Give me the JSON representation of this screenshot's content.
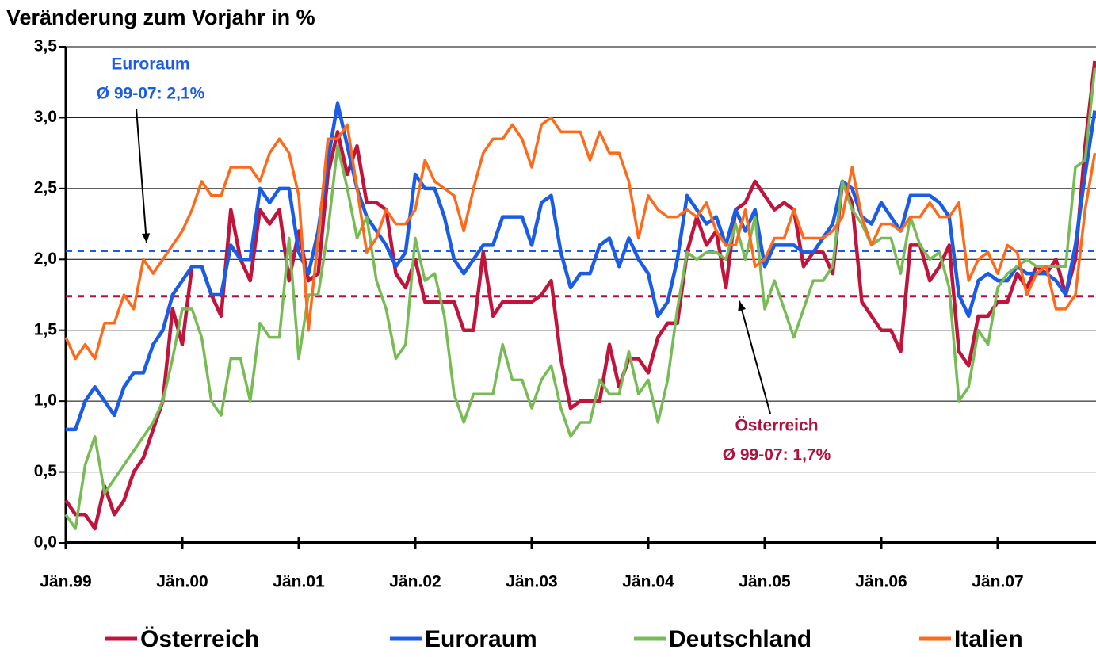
{
  "chart_data": {
    "type": "line",
    "title": "Veränderung zum Vorjahr in %",
    "categories": [
      "Jän.99",
      null,
      null,
      null,
      null,
      null,
      null,
      null,
      null,
      null,
      null,
      null,
      "Jän.00",
      null,
      null,
      null,
      null,
      null,
      null,
      null,
      null,
      null,
      null,
      null,
      "Jän.01",
      null,
      null,
      null,
      null,
      null,
      null,
      null,
      null,
      null,
      null,
      null,
      "Jän.02",
      null,
      null,
      null,
      null,
      null,
      null,
      null,
      null,
      null,
      null,
      null,
      "Jän.03",
      null,
      null,
      null,
      null,
      null,
      null,
      null,
      null,
      null,
      null,
      null,
      "Jän.04",
      null,
      null,
      null,
      null,
      null,
      null,
      null,
      null,
      null,
      null,
      null,
      "Jän.05",
      null,
      null,
      null,
      null,
      null,
      null,
      null,
      null,
      null,
      null,
      null,
      "Jän.06",
      null,
      null,
      null,
      null,
      null,
      null,
      null,
      null,
      null,
      null,
      null,
      "Jän.07",
      null,
      null,
      null,
      null,
      null,
      null,
      null,
      null,
      null,
      null
    ],
    "series": [
      {
        "name": "Österreich",
        "color": "#c0143c",
        "values": [
          0.3,
          0.2,
          0.2,
          0.1,
          0.4,
          0.2,
          0.3,
          0.5,
          0.6,
          0.8,
          1.0,
          1.65,
          1.4,
          1.95,
          1.95,
          1.75,
          1.6,
          2.35,
          2.0,
          1.85,
          2.35,
          2.25,
          2.35,
          1.85,
          2.2,
          1.85,
          1.9,
          2.6,
          2.9,
          2.6,
          2.8,
          2.4,
          2.4,
          2.35,
          1.9,
          1.8,
          2.0,
          1.7,
          1.7,
          1.7,
          1.7,
          1.5,
          1.5,
          2.05,
          1.6,
          1.7,
          1.7,
          1.7,
          1.7,
          1.75,
          1.85,
          1.3,
          0.95,
          1.0,
          1.0,
          1.0,
          1.4,
          1.1,
          1.3,
          1.3,
          1.2,
          1.45,
          1.55,
          1.55,
          2.05,
          2.3,
          2.1,
          2.2,
          1.8,
          2.35,
          2.4,
          2.55,
          2.45,
          2.35,
          2.4,
          2.35,
          1.95,
          2.05,
          2.05,
          1.9,
          2.55,
          2.4,
          1.7,
          1.6,
          1.5,
          1.5,
          1.35,
          2.1,
          2.1,
          1.85,
          1.95,
          2.1,
          1.35,
          1.25,
          1.6,
          1.6,
          1.7,
          1.7,
          1.9,
          1.8,
          1.95,
          1.9,
          2.0,
          1.75,
          2.0,
          2.8,
          3.4
        ]
      },
      {
        "name": "Euroraum",
        "color": "#1a5ce6",
        "values": [
          0.8,
          0.8,
          1.0,
          1.1,
          1.0,
          0.9,
          1.1,
          1.2,
          1.2,
          1.4,
          1.5,
          1.75,
          1.85,
          1.95,
          1.95,
          1.75,
          1.75,
          2.1,
          2.0,
          2.0,
          2.5,
          2.4,
          2.5,
          2.5,
          2.05,
          1.9,
          2.2,
          2.7,
          3.1,
          2.8,
          2.5,
          2.3,
          2.2,
          2.1,
          1.95,
          2.05,
          2.6,
          2.5,
          2.5,
          2.3,
          2.0,
          1.9,
          2.0,
          2.1,
          2.1,
          2.3,
          2.3,
          2.3,
          2.1,
          2.4,
          2.45,
          2.05,
          1.8,
          1.9,
          1.9,
          2.1,
          2.15,
          1.95,
          2.15,
          2.0,
          1.9,
          1.6,
          1.7,
          2.0,
          2.45,
          2.35,
          2.25,
          2.3,
          2.1,
          2.35,
          2.2,
          2.35,
          1.95,
          2.1,
          2.1,
          2.1,
          2.05,
          2.05,
          2.15,
          2.25,
          2.55,
          2.5,
          2.3,
          2.25,
          2.4,
          2.3,
          2.2,
          2.45,
          2.45,
          2.45,
          2.4,
          2.3,
          1.75,
          1.6,
          1.85,
          1.9,
          1.85,
          1.85,
          1.95,
          1.9,
          1.9,
          1.9,
          1.85,
          1.75,
          2.1,
          2.6,
          3.05
        ]
      },
      {
        "name": "Deutschland",
        "color": "#77bb55",
        "values": [
          0.2,
          0.1,
          0.55,
          0.75,
          0.35,
          0.45,
          0.55,
          0.65,
          0.75,
          0.85,
          1.0,
          1.3,
          1.65,
          1.65,
          1.45,
          1.0,
          0.9,
          1.3,
          1.3,
          1.0,
          1.55,
          1.45,
          1.45,
          2.15,
          1.3,
          1.75,
          1.75,
          2.2,
          2.8,
          2.5,
          2.15,
          2.3,
          1.85,
          1.65,
          1.3,
          1.4,
          2.15,
          1.85,
          1.9,
          1.6,
          1.05,
          0.85,
          1.05,
          1.05,
          1.05,
          1.4,
          1.15,
          1.15,
          0.95,
          1.15,
          1.25,
          0.95,
          0.75,
          0.85,
          0.85,
          1.15,
          1.05,
          1.05,
          1.35,
          1.05,
          1.15,
          0.85,
          1.15,
          1.65,
          2.05,
          2.0,
          2.05,
          2.05,
          2.0,
          2.25,
          2.0,
          2.3,
          1.65,
          1.85,
          1.65,
          1.45,
          1.65,
          1.85,
          1.85,
          1.95,
          2.55,
          2.35,
          2.25,
          2.1,
          2.15,
          2.15,
          1.9,
          2.3,
          2.1,
          2.0,
          2.05,
          1.8,
          1.0,
          1.1,
          1.5,
          1.4,
          1.8,
          1.9,
          1.95,
          2.0,
          1.95,
          1.95,
          1.95,
          1.95,
          2.65,
          2.7,
          3.35
        ]
      },
      {
        "name": "Italien",
        "color": "#ff6a1a",
        "values": [
          1.45,
          1.3,
          1.4,
          1.3,
          1.55,
          1.55,
          1.75,
          1.65,
          2.0,
          1.9,
          2.0,
          2.1,
          2.2,
          2.35,
          2.55,
          2.45,
          2.45,
          2.65,
          2.65,
          2.65,
          2.55,
          2.75,
          2.85,
          2.75,
          2.45,
          1.5,
          2.15,
          2.85,
          2.85,
          2.95,
          2.5,
          2.05,
          2.15,
          2.35,
          2.25,
          2.25,
          2.35,
          2.7,
          2.55,
          2.5,
          2.45,
          2.2,
          2.5,
          2.75,
          2.85,
          2.85,
          2.95,
          2.85,
          2.65,
          2.95,
          3.0,
          2.9,
          2.9,
          2.9,
          2.7,
          2.9,
          2.75,
          2.75,
          2.55,
          2.15,
          2.45,
          2.35,
          2.3,
          2.3,
          2.35,
          2.3,
          2.4,
          2.2,
          2.1,
          2.1,
          2.35,
          1.95,
          2.0,
          2.15,
          2.15,
          2.35,
          2.15,
          2.15,
          2.15,
          2.2,
          2.3,
          2.65,
          2.3,
          2.1,
          2.25,
          2.25,
          2.2,
          2.3,
          2.3,
          2.4,
          2.3,
          2.3,
          2.4,
          1.85,
          2.0,
          2.05,
          1.9,
          2.1,
          2.05,
          1.75,
          1.9,
          1.95,
          1.65,
          1.65,
          1.75,
          2.35,
          2.75
        ]
      }
    ],
    "ylim": [
      0,
      3.5
    ],
    "yticks": [
      {
        "value": 0,
        "label": "0,0"
      },
      {
        "value": 0.5,
        "label": "0,5"
      },
      {
        "value": 1,
        "label": "1,0"
      },
      {
        "value": 1.5,
        "label": "1,5"
      },
      {
        "value": 2,
        "label": "2,0"
      },
      {
        "value": 2.5,
        "label": "2,5"
      },
      {
        "value": 3,
        "label": "3,0"
      },
      {
        "value": 3.5,
        "label": "3,5"
      }
    ],
    "grid": true,
    "legend": "bottom",
    "reference_lines": [
      {
        "value": 2.06,
        "color": "#1a5ce6",
        "label": [
          "Euroraum",
          "Ø 99-07: 2,1%"
        ]
      },
      {
        "value": 1.74,
        "color": "#b0103c",
        "label": [
          "Österreich",
          "Ø 99-07: 1,7%"
        ]
      }
    ]
  }
}
